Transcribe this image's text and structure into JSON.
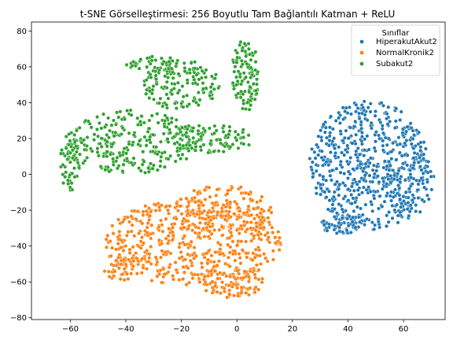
{
  "chart_data": {
    "type": "scatter",
    "title": "t-SNE Görselleştirmesi: 256 Boyutlu Tam Bağlantılı Katman + ReLU",
    "xlabel": "",
    "ylabel": "",
    "xlim": [
      -74,
      75
    ],
    "ylim": [
      -81,
      85
    ],
    "xticks": [
      -60,
      -40,
      -20,
      0,
      20,
      40,
      60
    ],
    "yticks": [
      -80,
      -60,
      -40,
      -20,
      0,
      20,
      40,
      60,
      80
    ],
    "grid": false,
    "legend": {
      "title": "Sınıflar",
      "placement": "top-right"
    },
    "series": [
      {
        "name": "HiperakutAkut2",
        "color": "#1f77b4",
        "clusters": [
          {
            "cx": 48,
            "cy": 5,
            "rx": 22,
            "ry": 36,
            "n": 560
          },
          {
            "cx": 62,
            "cy": 0,
            "rx": 9,
            "ry": 26,
            "n": 110
          },
          {
            "cx": 38,
            "cy": -28,
            "rx": 8,
            "ry": 5,
            "n": 60
          }
        ]
      },
      {
        "name": "NormalKronik2",
        "color": "#ff7f0e",
        "clusters": [
          {
            "cx": -16,
            "cy": -38,
            "rx": 32,
            "ry": 24,
            "n": 520
          },
          {
            "cx": -5,
            "cy": -22,
            "rx": 18,
            "ry": 16,
            "n": 150
          },
          {
            "cx": -2,
            "cy": -60,
            "rx": 12,
            "ry": 9,
            "n": 90
          },
          {
            "cx": -42,
            "cy": -52,
            "rx": 6,
            "ry": 8,
            "n": 40
          }
        ]
      },
      {
        "name": "Subakut2",
        "color": "#2ca02c",
        "clusters": [
          {
            "cx": -38,
            "cy": 18,
            "rx": 24,
            "ry": 18,
            "n": 260
          },
          {
            "cx": -20,
            "cy": 50,
            "rx": 14,
            "ry": 14,
            "n": 150
          },
          {
            "cx": -10,
            "cy": 20,
            "rx": 16,
            "ry": 8,
            "n": 110
          },
          {
            "cx": 3,
            "cy": 55,
            "rx": 5,
            "ry": 20,
            "n": 110
          },
          {
            "cx": -60,
            "cy": 5,
            "rx": 4,
            "ry": 14,
            "n": 50
          },
          {
            "cx": -30,
            "cy": 62,
            "rx": 10,
            "ry": 4,
            "n": 40
          }
        ]
      }
    ]
  }
}
